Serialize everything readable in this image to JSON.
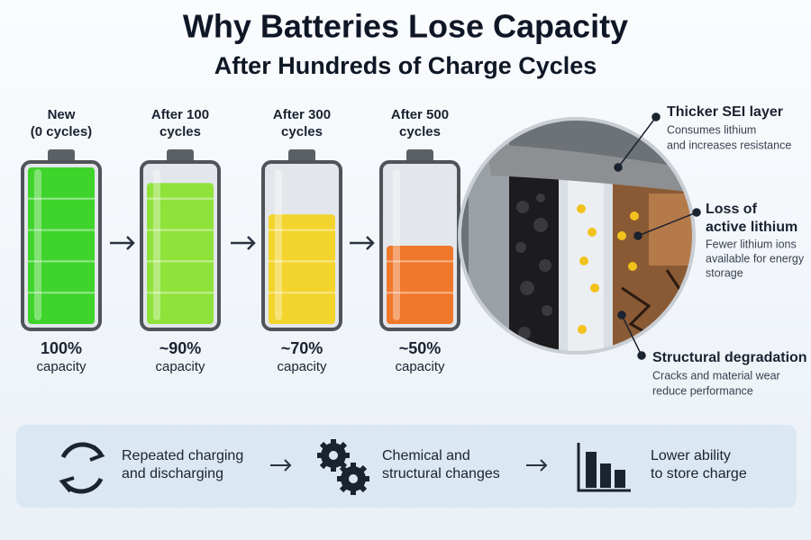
{
  "title": "Why Batteries Lose Capacity",
  "subtitle": "After Hundreds of Charge Cycles",
  "batteries": [
    {
      "label": [
        "New",
        "(0 cycles)"
      ],
      "value": 100,
      "value_label": "100%",
      "caption": "capacity",
      "color": "#3fd42c"
    },
    {
      "label": [
        "After 100",
        "cycles"
      ],
      "value": 90,
      "value_label": "~90%",
      "caption": "capacity",
      "color": "#8fe23a"
    },
    {
      "label": [
        "After 300",
        "cycles"
      ],
      "value": 70,
      "value_label": "~70%",
      "caption": "capacity",
      "color": "#f3d42c"
    },
    {
      "label": [
        "After 500",
        "cycles"
      ],
      "value": 50,
      "value_label": "~50%",
      "caption": "capacity",
      "color": "#f0782c"
    }
  ],
  "callouts": [
    {
      "title": [
        "Thicker SEI layer"
      ],
      "text": [
        "Consumes lithium",
        "and increases resistance"
      ]
    },
    {
      "title": [
        "Loss of",
        "active lithium"
      ],
      "text": [
        "Fewer lithium ions",
        "available for energy",
        "storage"
      ]
    },
    {
      "title": [
        "Structural degradation"
      ],
      "text": [
        "Cracks and material wear",
        "reduce performance"
      ]
    }
  ],
  "process": [
    {
      "text": [
        "Repeated charging",
        "and discharging"
      ]
    },
    {
      "text": [
        "Chemical and",
        "structural changes"
      ]
    },
    {
      "text": [
        "Lower ability",
        "to store charge"
      ]
    }
  ]
}
